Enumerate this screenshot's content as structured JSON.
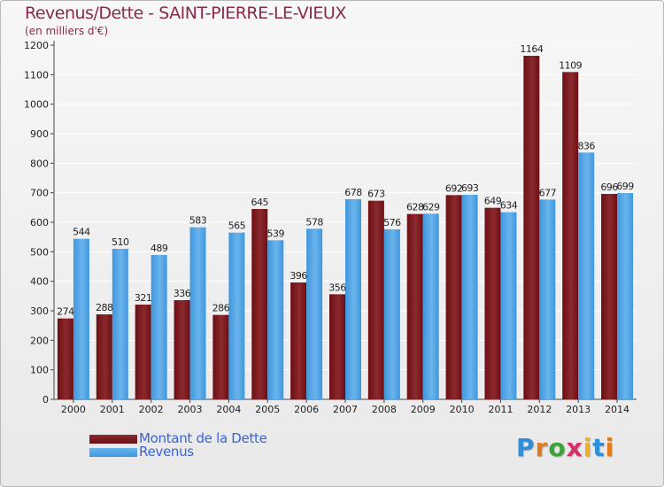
{
  "header": {
    "title": "Revenus/Dette - SAINT-PIERRE-LE-VIEUX",
    "subtitle": "(en milliers d'€)"
  },
  "legend": {
    "debt_label": "Montant de la Dette",
    "revenue_label": "Revenus"
  },
  "logo": {
    "text": "Proxiti",
    "letter_colors": [
      "#2e8fd6",
      "#e07a1a",
      "#3aa23a",
      "#d62e6a",
      "#f0b020",
      "#2e8fd6",
      "#e07a1a"
    ]
  },
  "colors": {
    "debt": "#6b0f14",
    "debt_light": "#8c2a2e",
    "revenue": "#3f97dd",
    "revenue_light": "#6ab4ec",
    "grid": "#ffffff",
    "axis_text": "#222222"
  },
  "chart_data": {
    "type": "bar",
    "title": "Revenus/Dette - SAINT-PIERRE-LE-VIEUX",
    "subtitle": "(en milliers d'€)",
    "categories": [
      "2000",
      "2001",
      "2002",
      "2003",
      "2004",
      "2005",
      "2006",
      "2007",
      "2008",
      "2009",
      "2010",
      "2011",
      "2012",
      "2013",
      "2014"
    ],
    "series": [
      {
        "name": "Montant de la Dette",
        "values": [
          274,
          288,
          321,
          336,
          286,
          645,
          396,
          356,
          673,
          628,
          692,
          649,
          1164,
          1109,
          696
        ]
      },
      {
        "name": "Revenus",
        "values": [
          544,
          510,
          489,
          583,
          565,
          539,
          578,
          678,
          576,
          629,
          693,
          634,
          677,
          836,
          699
        ]
      }
    ],
    "yticks": [
      0,
      100,
      200,
      300,
      400,
      500,
      600,
      700,
      800,
      900,
      1000,
      1100,
      1200
    ],
    "ylim": [
      0,
      1200
    ],
    "grid": true,
    "legend_position": "bottom-left"
  }
}
